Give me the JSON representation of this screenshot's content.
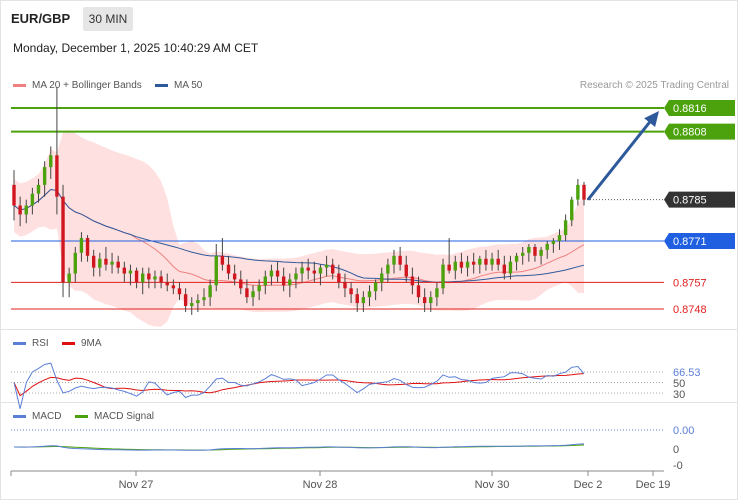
{
  "header": {
    "symbol": "EUR/GBP",
    "timeframe": "30 MIN",
    "datetime": "Monday, December 1, 2025 10:40:29 AM CET"
  },
  "legend": {
    "ma20": "MA 20 + Bollinger Bands",
    "ma20_color": "#f08080",
    "ma50": "MA 50",
    "ma50_color": "#2e5a9c"
  },
  "credit": "Research © 2025 Trading Central",
  "rsi_legend": {
    "rsi": "RSI",
    "rsi_color": "#5b7fd6",
    "ma": "9MA",
    "ma_color": "#e01010"
  },
  "macd_legend": {
    "macd": "MACD",
    "macd_color": "#5b7fd6",
    "signal": "MACD Signal",
    "signal_color": "#4ca20c"
  },
  "chart_data": {
    "type": "candlestick",
    "pair": "EUR/GBP",
    "price_levels": [
      {
        "value": 0.8816,
        "label": "0.8816",
        "kind": "resistance",
        "color": "#4ca20c"
      },
      {
        "value": 0.8808,
        "label": "0.8808",
        "kind": "resistance",
        "color": "#4ca20c"
      },
      {
        "value": 0.8785,
        "label": "0.8785",
        "kind": "last-price",
        "color": "#333333"
      },
      {
        "value": 0.8771,
        "label": "0.8771",
        "kind": "pivot",
        "color": "#1f5fe0"
      },
      {
        "value": 0.8757,
        "label": "0.8757",
        "kind": "support",
        "color": "#e02020"
      },
      {
        "value": 0.8748,
        "label": "0.8748",
        "kind": "support",
        "color": "#e02020"
      }
    ],
    "x_ticks": [
      "Nov 27",
      "Nov 28",
      "Nov 30",
      "Dec 2",
      "Dec 19"
    ],
    "candles": [
      [
        0.879,
        0.8795,
        0.8778,
        0.8783
      ],
      [
        0.8783,
        0.8786,
        0.8776,
        0.878
      ],
      [
        0.878,
        0.8785,
        0.8777,
        0.8783
      ],
      [
        0.8783,
        0.8789,
        0.878,
        0.8787
      ],
      [
        0.8787,
        0.8792,
        0.8784,
        0.879
      ],
      [
        0.879,
        0.8798,
        0.8786,
        0.8796
      ],
      [
        0.8796,
        0.8803,
        0.8792,
        0.88
      ],
      [
        0.88,
        0.8823,
        0.878,
        0.8786
      ],
      [
        0.8786,
        0.879,
        0.8752,
        0.8757
      ],
      [
        0.8757,
        0.8762,
        0.8752,
        0.876
      ],
      [
        0.876,
        0.8769,
        0.8757,
        0.8767
      ],
      [
        0.8767,
        0.8774,
        0.8764,
        0.8772
      ],
      [
        0.8772,
        0.8773,
        0.8764,
        0.8766
      ],
      [
        0.8766,
        0.8768,
        0.8759,
        0.8762
      ],
      [
        0.8762,
        0.8767,
        0.8759,
        0.8765
      ],
      [
        0.8765,
        0.8769,
        0.8761,
        0.8763
      ],
      [
        0.8763,
        0.8767,
        0.876,
        0.8764
      ],
      [
        0.8764,
        0.8766,
        0.876,
        0.8762
      ],
      [
        0.8762,
        0.8764,
        0.8757,
        0.876
      ],
      [
        0.876,
        0.8763,
        0.8756,
        0.8761
      ],
      [
        0.8761,
        0.8762,
        0.8755,
        0.8757
      ],
      [
        0.8757,
        0.8762,
        0.8753,
        0.876
      ],
      [
        0.876,
        0.8762,
        0.8755,
        0.8758
      ],
      [
        0.8758,
        0.8761,
        0.8755,
        0.8759
      ],
      [
        0.8759,
        0.8761,
        0.8755,
        0.8757
      ],
      [
        0.8757,
        0.876,
        0.8754,
        0.8756
      ],
      [
        0.8756,
        0.8758,
        0.8753,
        0.8755
      ],
      [
        0.8755,
        0.8757,
        0.8751,
        0.8753
      ],
      [
        0.8753,
        0.8755,
        0.8747,
        0.8749
      ],
      [
        0.8749,
        0.8752,
        0.8746,
        0.875
      ],
      [
        0.875,
        0.8753,
        0.8747,
        0.8751
      ],
      [
        0.8751,
        0.8755,
        0.8749,
        0.8752
      ],
      [
        0.8752,
        0.8758,
        0.8749,
        0.8756
      ],
      [
        0.8756,
        0.877,
        0.8754,
        0.8766
      ],
      [
        0.8766,
        0.8772,
        0.8761,
        0.8763
      ],
      [
        0.8763,
        0.8766,
        0.8758,
        0.876
      ],
      [
        0.876,
        0.8763,
        0.8756,
        0.8758
      ],
      [
        0.8758,
        0.8761,
        0.8753,
        0.8755
      ],
      [
        0.8755,
        0.8758,
        0.875,
        0.8752
      ],
      [
        0.8752,
        0.8756,
        0.8749,
        0.8754
      ],
      [
        0.8754,
        0.8758,
        0.8751,
        0.8756
      ],
      [
        0.8756,
        0.8761,
        0.8753,
        0.8759
      ],
      [
        0.8759,
        0.8763,
        0.8756,
        0.8761
      ],
      [
        0.8761,
        0.8764,
        0.8757,
        0.8759
      ],
      [
        0.8759,
        0.8762,
        0.8754,
        0.8756
      ],
      [
        0.8756,
        0.876,
        0.8752,
        0.8758
      ],
      [
        0.8758,
        0.8762,
        0.8755,
        0.876
      ],
      [
        0.876,
        0.8764,
        0.8757,
        0.8762
      ],
      [
        0.8762,
        0.8765,
        0.8758,
        0.8761
      ],
      [
        0.8761,
        0.8764,
        0.8757,
        0.876
      ],
      [
        0.876,
        0.8763,
        0.8756,
        0.8762
      ],
      [
        0.8762,
        0.8766,
        0.8759,
        0.8763
      ],
      [
        0.8763,
        0.8765,
        0.8758,
        0.876
      ],
      [
        0.876,
        0.8763,
        0.8755,
        0.8757
      ],
      [
        0.8757,
        0.876,
        0.8752,
        0.8755
      ],
      [
        0.8755,
        0.8757,
        0.875,
        0.8753
      ],
      [
        0.8753,
        0.8755,
        0.8747,
        0.875
      ],
      [
        0.875,
        0.8754,
        0.8747,
        0.8752
      ],
      [
        0.8752,
        0.8756,
        0.8749,
        0.8754
      ],
      [
        0.8754,
        0.8758,
        0.8751,
        0.8757
      ],
      [
        0.8757,
        0.8762,
        0.8754,
        0.876
      ],
      [
        0.876,
        0.8765,
        0.8757,
        0.8763
      ],
      [
        0.8763,
        0.8768,
        0.876,
        0.8766
      ],
      [
        0.8766,
        0.8769,
        0.8761,
        0.8763
      ],
      [
        0.8763,
        0.8766,
        0.8757,
        0.8759
      ],
      [
        0.8759,
        0.8762,
        0.8753,
        0.8756
      ],
      [
        0.8756,
        0.8759,
        0.875,
        0.8752
      ],
      [
        0.8752,
        0.8755,
        0.8747,
        0.875
      ],
      [
        0.875,
        0.8754,
        0.8747,
        0.8752
      ],
      [
        0.8752,
        0.8757,
        0.8749,
        0.8755
      ],
      [
        0.8755,
        0.8765,
        0.8753,
        0.8763
      ],
      [
        0.8763,
        0.8772,
        0.876,
        0.8761
      ],
      [
        0.8761,
        0.8766,
        0.8758,
        0.8764
      ],
      [
        0.8764,
        0.8767,
        0.876,
        0.8762
      ],
      [
        0.8762,
        0.8766,
        0.8759,
        0.8764
      ],
      [
        0.8764,
        0.8767,
        0.876,
        0.8763
      ],
      [
        0.8763,
        0.8766,
        0.876,
        0.8765
      ],
      [
        0.8765,
        0.8768,
        0.8761,
        0.8763
      ],
      [
        0.8763,
        0.8767,
        0.8761,
        0.8765
      ],
      [
        0.8765,
        0.8768,
        0.8761,
        0.8763
      ],
      [
        0.8763,
        0.8766,
        0.8758,
        0.876
      ],
      [
        0.876,
        0.8766,
        0.8758,
        0.8764
      ],
      [
        0.8764,
        0.8767,
        0.8761,
        0.8766
      ],
      [
        0.8766,
        0.8769,
        0.8763,
        0.8767
      ],
      [
        0.8767,
        0.877,
        0.8764,
        0.8769
      ],
      [
        0.8769,
        0.877,
        0.8764,
        0.8766
      ],
      [
        0.8766,
        0.8769,
        0.8763,
        0.8768
      ],
      [
        0.8768,
        0.8771,
        0.8765,
        0.877
      ],
      [
        0.877,
        0.8772,
        0.8767,
        0.8771
      ],
      [
        0.8771,
        0.8775,
        0.8768,
        0.8773
      ],
      [
        0.8773,
        0.878,
        0.8771,
        0.8778
      ],
      [
        0.8778,
        0.8786,
        0.8776,
        0.8785
      ],
      [
        0.8785,
        0.8792,
        0.8783,
        0.879
      ],
      [
        0.879,
        0.8791,
        0.8783,
        0.8785
      ]
    ],
    "rsi": {
      "last": 66.53,
      "levels": [
        70,
        50,
        30
      ],
      "labels": [
        "66.53",
        "50",
        "30"
      ]
    },
    "macd": {
      "last": 0.0,
      "labels": [
        "0.00",
        "0",
        "-0"
      ]
    },
    "annotation": "arrow projecting rise from 0.8785 toward 0.8816",
    "grid": false
  }
}
